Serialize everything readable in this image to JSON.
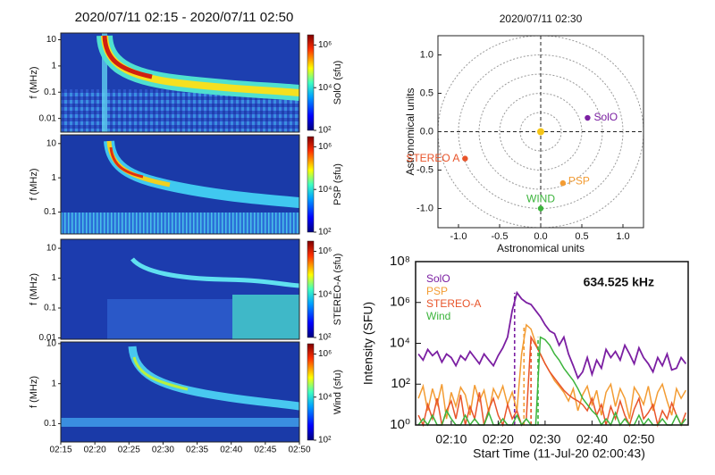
{
  "chart_data": [
    {
      "type": "spectrogram",
      "title": "2020/07/11 02:15 - 2020/07/11 02:50",
      "ylabel": "f (MHz)",
      "log_y": true,
      "ylim": [
        0.003,
        18
      ],
      "yticks": [
        10,
        1,
        0.1,
        0.01
      ],
      "xlim": [
        15,
        50
      ],
      "colorbar_label": "SolO (sfu)",
      "clim": [
        100,
        3000000
      ],
      "cticks": [
        {
          "value": 1000000,
          "label": "10⁶"
        },
        {
          "value": 10000,
          "label": "10⁴"
        },
        {
          "value": 100,
          "label": "10²"
        }
      ]
    },
    {
      "type": "spectrogram",
      "ylabel": "f (MHz)",
      "log_y": true,
      "ylim": [
        0.023,
        18
      ],
      "yticks": [
        10,
        1,
        0.1
      ],
      "xlim": [
        15,
        50
      ],
      "colorbar_label": "PSP (sfu)",
      "clim": [
        100,
        3000000
      ],
      "cticks": [
        {
          "value": 1000000,
          "label": "10⁶"
        },
        {
          "value": 10000,
          "label": "10⁴"
        },
        {
          "value": 100,
          "label": "10²"
        }
      ]
    },
    {
      "type": "spectrogram",
      "ylabel": "f (MHz)",
      "log_y": true,
      "ylim": [
        0.009,
        20
      ],
      "yticks": [
        10,
        1,
        0.1,
        0.01
      ],
      "xlim": [
        15,
        50
      ],
      "colorbar_label": "STEREO-A (sfu)",
      "clim": [
        100,
        3000000
      ],
      "cticks": [
        {
          "value": 1000000,
          "label": "10⁶"
        },
        {
          "value": 10000,
          "label": "10⁴"
        },
        {
          "value": 100,
          "label": "10²"
        }
      ]
    },
    {
      "type": "spectrogram",
      "ylabel": "f (MHz)",
      "log_y": true,
      "ylim": [
        0.035,
        11
      ],
      "yticks": [
        10,
        1,
        0.1
      ],
      "xlim": [
        15,
        50
      ],
      "xticks": [
        {
          "value": 15,
          "label": "02:15"
        },
        {
          "value": 20,
          "label": "02:20"
        },
        {
          "value": 25,
          "label": "02:25"
        },
        {
          "value": 30,
          "label": "02:30"
        },
        {
          "value": 35,
          "label": "02:35"
        },
        {
          "value": 40,
          "label": "02:40"
        },
        {
          "value": 45,
          "label": "02:45"
        },
        {
          "value": 50,
          "label": "02:50"
        }
      ],
      "colorbar_label": "Wind (sfu)",
      "clim": [
        100,
        3000000
      ],
      "cticks": [
        {
          "value": 1000000,
          "label": "10⁶"
        },
        {
          "value": 10000,
          "label": "10⁴"
        },
        {
          "value": 100,
          "label": "10²"
        }
      ]
    },
    {
      "type": "scatter",
      "title": "2020/07/11 02:30",
      "xlabel": "Astronomical units",
      "ylabel": "Astronomical units",
      "xlim": [
        -1.25,
        1.25
      ],
      "ylim": [
        -1.25,
        1.25
      ],
      "xticks": [
        {
          "value": -1,
          "label": "-1.0"
        },
        -0.5,
        {
          "value": 0,
          "label": "0.0"
        },
        0.5,
        {
          "value": 1,
          "label": "1.0"
        }
      ],
      "yticks": [
        {
          "value": -1,
          "label": "-1.0"
        },
        -0.5,
        {
          "value": 0,
          "label": "0.0"
        },
        0.5,
        {
          "value": 1,
          "label": "1.0"
        }
      ],
      "circles": [
        0.25,
        0.5,
        0.75,
        1,
        1.25
      ],
      "center": {
        "x": 0,
        "y": 0,
        "color": "#f5c518"
      },
      "points": [
        {
          "name": "SolO",
          "color": "#7b1fa2",
          "x": 0.57,
          "y": 0.18
        },
        {
          "name": "STEREO A",
          "color": "#e8542a",
          "x": -0.92,
          "y": -0.35
        },
        {
          "name": "PSP",
          "color": "#f39c33",
          "x": 0.27,
          "y": -0.67
        },
        {
          "name": "WIND",
          "color": "#3cb43c",
          "x": 0.0,
          "y": -1.0
        }
      ]
    },
    {
      "type": "line",
      "log_y": true,
      "annotation": "634.525 kHz",
      "xlabel": "Start Time (11-Jul-20 02:00:43)",
      "ylabel": "Intensity (SFU)",
      "xlim": [
        2.4,
        60.5
      ],
      "ylim": [
        1,
        100000000
      ],
      "xticks": [
        {
          "value": 10,
          "label": "02:10"
        },
        {
          "value": 20,
          "label": "02:20"
        },
        {
          "value": 30,
          "label": "02:30"
        },
        {
          "value": 40,
          "label": "02:40"
        },
        {
          "value": 50,
          "label": "02:50"
        }
      ],
      "yticks": [
        {
          "value": 1,
          "label": "10⁰"
        },
        {
          "value": 100,
          "label": "10²"
        },
        {
          "value": 10000,
          "label": "10⁴"
        },
        {
          "value": 1000000,
          "label": "10⁶"
        },
        {
          "value": 100000000,
          "label": "10⁸"
        }
      ],
      "x": [
        3,
        4,
        5,
        6,
        7,
        8,
        9,
        10,
        11,
        12,
        13,
        14,
        15,
        16,
        17,
        18,
        19,
        20,
        21,
        22,
        23,
        24,
        25,
        26,
        27,
        28,
        29,
        30,
        31,
        32,
        33,
        34,
        35,
        36,
        37,
        38,
        39,
        40,
        41,
        42,
        43,
        44,
        45,
        46,
        47,
        48,
        49,
        50,
        51,
        52,
        53,
        54,
        55,
        56,
        57,
        58,
        59,
        60
      ],
      "series": [
        {
          "name": "SolO",
          "color": "#7b1fa2",
          "onset": 23.5,
          "values": [
            3000,
            1500,
            5000,
            2500,
            4000,
            1200,
            3000,
            2000,
            800,
            2500,
            1500,
            4000,
            2000,
            1000,
            3000,
            1500,
            800,
            2500,
            6000,
            20000,
            400000,
            3000000,
            1500000,
            1000000,
            800000,
            400000,
            200000,
            80000,
            40000,
            30000,
            8000,
            20000,
            3000,
            800,
            200,
            400,
            2000,
            300,
            1500,
            600,
            5000,
            2000,
            4000,
            1500,
            8000,
            3000,
            1000,
            6000,
            2000,
            1000,
            400,
            2000,
            800,
            3000,
            500,
            600,
            2000,
            1000
          ]
        },
        {
          "name": "PSP",
          "color": "#f39c33",
          "onset": 25.5,
          "values": [
            20,
            80,
            5,
            60,
            10,
            100,
            2,
            40,
            8,
            70,
            30,
            3,
            90,
            15,
            50,
            4,
            60,
            20,
            80,
            10,
            40,
            5,
            3000,
            80000,
            50000,
            10000,
            3000,
            1000,
            400,
            150,
            80,
            40,
            15,
            60,
            5,
            30,
            80,
            10,
            50,
            3,
            40,
            100,
            8,
            60,
            20,
            2,
            70,
            30,
            10,
            80,
            5,
            40,
            100,
            15,
            3,
            60,
            20,
            50
          ]
        },
        {
          "name": "STEREO-A",
          "color": "#e8542a",
          "onset": 27,
          "values": [
            3,
            1,
            10,
            2,
            20,
            1,
            5,
            15,
            2,
            30,
            1,
            8,
            2,
            40,
            1,
            6,
            20,
            3,
            1,
            10,
            2,
            5,
            1,
            2,
            20000,
            8000,
            3000,
            1000,
            400,
            200,
            100,
            50,
            30,
            20,
            15,
            10,
            5,
            20,
            3,
            10,
            1,
            8,
            2,
            15,
            3,
            1,
            6,
            20,
            2,
            4,
            10,
            1,
            5,
            2,
            12,
            3,
            1,
            4
          ]
        },
        {
          "name": "Wind",
          "color": "#3cb43c",
          "onset": 28.5,
          "values": [
            1,
            2,
            1,
            3,
            1,
            1,
            5,
            2,
            1,
            1,
            3,
            1,
            2,
            1,
            1,
            4,
            1,
            1,
            2,
            1,
            1,
            3,
            1,
            2,
            1,
            1,
            20000,
            15000,
            8000,
            3000,
            1500,
            600,
            300,
            150,
            60,
            20,
            10,
            5,
            3,
            1,
            2,
            1,
            4,
            1,
            2,
            1,
            1,
            3,
            1,
            2,
            1,
            1,
            2,
            1,
            1,
            3,
            1,
            2
          ]
        }
      ]
    }
  ]
}
